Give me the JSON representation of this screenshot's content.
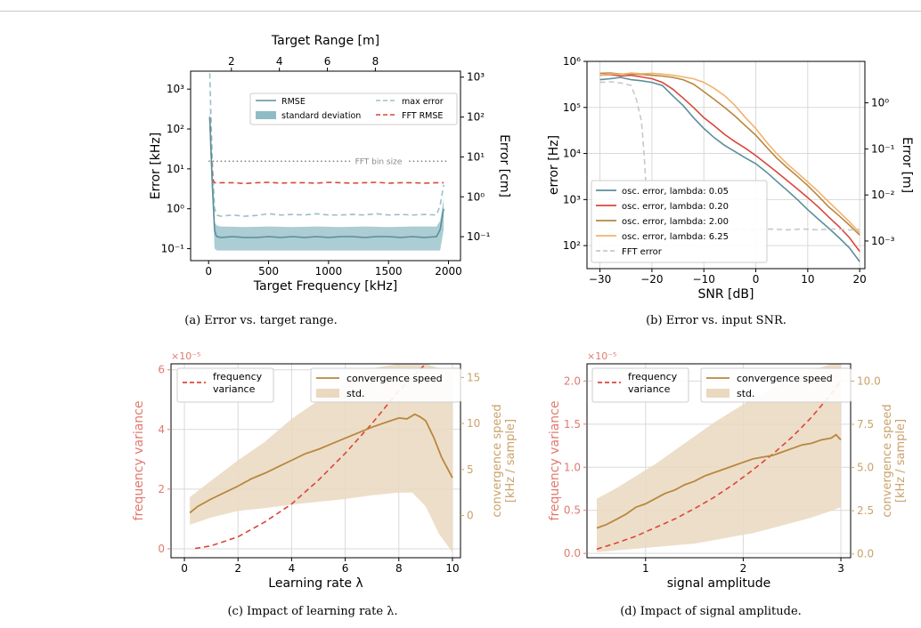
{
  "colors": {
    "teal": "#5a8f9a",
    "teal_band": "#8fbcc4",
    "light_teal": "#9bc0c6",
    "red": "#d9473b",
    "gray": "#c8c8c8",
    "dark_gold": "#b8873f",
    "light_orange": "#f2b26e",
    "tan_band": "#ead8bf",
    "pink": "#e07a70",
    "tan_text": "#c9a26a"
  },
  "captions": {
    "a": "(a) Error vs. target range.",
    "b": "(b) Error vs. input SNR.",
    "c": "(c) Impact of learning rate λ.",
    "d": "(d) Impact of signal amplitude."
  },
  "chart_data": [
    {
      "id": "a",
      "type": "line",
      "xlabel": "Target Frequency [kHz]",
      "ylabel": "Error [kHz]",
      "xlabel_top": "Target Range [m]",
      "ylabel_right": "Error [cm]",
      "xlim": [
        -150,
        2100
      ],
      "ylim_log10": [
        -1.3,
        3.45
      ],
      "yscale": "log",
      "xticks": [
        0,
        500,
        1000,
        1500,
        2000
      ],
      "xticks_top": [
        "2",
        "4",
        "6",
        "8"
      ],
      "xticks_top_at": [
        190,
        590,
        990,
        1390
      ],
      "yticks_log10": [
        -1,
        0,
        1,
        2,
        3
      ],
      "yticks_right_log10": [
        -1,
        0,
        1,
        2,
        3
      ],
      "yticks_right_offset_log10": -0.3,
      "grid": false,
      "annotation": "FFT bin size",
      "annotation_y": 15.6,
      "legend_position": "top",
      "legend": [
        "RMSE",
        "standard deviation",
        "max error",
        "FFT RMSE"
      ],
      "series": [
        {
          "name": "RMSE",
          "x": [
            10,
            20,
            30,
            40,
            50,
            60,
            70,
            100,
            200,
            300,
            400,
            500,
            600,
            700,
            800,
            900,
            1000,
            1100,
            1200,
            1300,
            1400,
            1500,
            1600,
            1700,
            1800,
            1900,
            1930,
            1960
          ],
          "y": [
            200,
            30,
            5,
            1.2,
            0.3,
            0.22,
            0.2,
            0.19,
            0.2,
            0.19,
            0.19,
            0.2,
            0.19,
            0.2,
            0.19,
            0.2,
            0.19,
            0.2,
            0.2,
            0.19,
            0.2,
            0.2,
            0.19,
            0.2,
            0.19,
            0.2,
            0.3,
            1.0
          ]
        },
        {
          "name": "standard deviation",
          "x": [
            10,
            20,
            30,
            40,
            50,
            70,
            100,
            300,
            500,
            700,
            900,
            1100,
            1300,
            1500,
            1700,
            1900,
            1930,
            1960
          ],
          "lower": [
            100,
            10,
            2,
            0.5,
            0.1,
            0.09,
            0.09,
            0.09,
            0.09,
            0.09,
            0.09,
            0.09,
            0.09,
            0.09,
            0.09,
            0.09,
            0.09,
            0.3
          ],
          "upper": [
            400,
            80,
            12,
            3,
            0.45,
            0.38,
            0.36,
            0.35,
            0.36,
            0.35,
            0.36,
            0.35,
            0.36,
            0.35,
            0.36,
            0.36,
            0.5,
            1.8
          ]
        },
        {
          "name": "max error",
          "x": [
            10,
            20,
            30,
            40,
            50,
            70,
            100,
            200,
            300,
            400,
            500,
            600,
            700,
            800,
            900,
            1000,
            1100,
            1200,
            1300,
            1400,
            1500,
            1600,
            1700,
            1800,
            1900,
            1930,
            1960
          ],
          "y": [
            2500,
            200,
            20,
            4,
            1,
            0.7,
            0.65,
            0.7,
            0.65,
            0.68,
            0.75,
            0.7,
            0.72,
            0.7,
            0.75,
            0.7,
            0.7,
            0.72,
            0.7,
            0.75,
            0.7,
            0.72,
            0.7,
            0.72,
            0.7,
            1.2,
            4
          ]
        },
        {
          "name": "FFT RMSE",
          "x": [
            10,
            20,
            30,
            40,
            50,
            100,
            200,
            300,
            400,
            500,
            600,
            700,
            800,
            900,
            1000,
            1100,
            1200,
            1300,
            1400,
            1500,
            1600,
            1700,
            1800,
            1900,
            1960
          ],
          "y": [
            200,
            30,
            8,
            5,
            4.5,
            4.5,
            4.5,
            4.3,
            4.5,
            4.6,
            4.4,
            4.5,
            4.5,
            4.4,
            4.6,
            4.5,
            4.4,
            4.5,
            4.6,
            4.4,
            4.5,
            4.5,
            4.4,
            4.5,
            4.5
          ]
        }
      ]
    },
    {
      "id": "b",
      "type": "line",
      "xlabel": "SNR [dB]",
      "ylabel": "error [Hz]",
      "ylabel_right": "Error [m]",
      "xlim": [
        -32.5,
        21
      ],
      "ylim_log10": [
        1.5,
        6
      ],
      "yscale": "log",
      "xticks": [
        -30,
        -20,
        -10,
        0,
        10,
        20
      ],
      "yticks_log10": [
        2,
        3,
        4,
        5,
        6
      ],
      "yticks_right_log10": [
        -3,
        -2,
        -1,
        0
      ],
      "yticks_right_offset_log10": 5.1,
      "grid": true,
      "legend_position": "bottom-left",
      "series": [
        {
          "name": "osc. error, lambda: 0.05",
          "x": [
            -30,
            -28,
            -26,
            -24,
            -22,
            -20,
            -18,
            -16,
            -14,
            -12,
            -10,
            -8,
            -6,
            -4,
            -2,
            0,
            2,
            4,
            6,
            8,
            10,
            12,
            14,
            16,
            18,
            20
          ],
          "y": [
            400000,
            420000,
            450000,
            400000,
            380000,
            350000,
            300000,
            180000,
            110000,
            60000,
            35000,
            22000,
            15000,
            11000,
            8000,
            6000,
            4000,
            2500,
            1600,
            1000,
            600,
            380,
            240,
            150,
            90,
            45
          ]
        },
        {
          "name": "osc. error, lambda: 0.20",
          "x": [
            -30,
            -28,
            -26,
            -24,
            -22,
            -20,
            -18,
            -16,
            -14,
            -12,
            -10,
            -8,
            -6,
            -4,
            -2,
            0,
            2,
            4,
            6,
            8,
            10,
            12,
            14,
            16,
            18,
            20
          ],
          "y": [
            500000,
            520000,
            480000,
            500000,
            460000,
            420000,
            350000,
            250000,
            160000,
            100000,
            60000,
            40000,
            26000,
            18000,
            13000,
            9000,
            6000,
            4000,
            2600,
            1700,
            1100,
            700,
            420,
            260,
            150,
            75
          ]
        },
        {
          "name": "osc. error, lambda: 2.00",
          "x": [
            -30,
            -28,
            -26,
            -24,
            -22,
            -20,
            -18,
            -16,
            -14,
            -12,
            -10,
            -8,
            -6,
            -4,
            -2,
            0,
            2,
            4,
            6,
            8,
            10,
            12,
            14,
            16,
            18,
            20
          ],
          "y": [
            550000,
            560000,
            530000,
            540000,
            520000,
            500000,
            480000,
            450000,
            400000,
            320000,
            220000,
            150000,
            100000,
            65000,
            40000,
            25000,
            14000,
            8000,
            5000,
            3200,
            2000,
            1200,
            700,
            450,
            280,
            170
          ]
        },
        {
          "name": "osc. error, lambda: 6.25",
          "x": [
            -30,
            -28,
            -26,
            -24,
            -22,
            -20,
            -18,
            -16,
            -14,
            -12,
            -10,
            -8,
            -6,
            -4,
            -2,
            0,
            2,
            4,
            6,
            8,
            10,
            12,
            14,
            16,
            18,
            20
          ],
          "y": [
            500000,
            540000,
            520000,
            560000,
            540000,
            550000,
            530000,
            500000,
            460000,
            420000,
            350000,
            260000,
            180000,
            110000,
            60000,
            35000,
            18000,
            10000,
            6000,
            3800,
            2400,
            1500,
            900,
            550,
            330,
            190
          ]
        },
        {
          "name": "FFT error",
          "x": [
            -30,
            -28,
            -26,
            -24,
            -23,
            -22,
            -21.5,
            -21,
            -20.5,
            -20,
            -18,
            -15,
            -12,
            -9,
            -6,
            -3,
            0,
            3,
            6,
            9,
            12,
            15,
            18,
            20
          ],
          "y": [
            350000,
            360000,
            340000,
            300000,
            150000,
            50000,
            10000,
            1000,
            300,
            230,
            220,
            230,
            220,
            240,
            220,
            230,
            220,
            230,
            220,
            230,
            220,
            230,
            220,
            225
          ]
        }
      ]
    },
    {
      "id": "c",
      "type": "line",
      "xlabel": "Learning rate λ",
      "ylabel": "frequency variance",
      "ylabel_right": "convergence speed\n[kHz / sample]",
      "y_multiplier": "×10⁻⁵",
      "xlim": [
        -0.5,
        10.3
      ],
      "ylim": [
        -0.3,
        6.2
      ],
      "ylim_right": [
        -4.58,
        16.48
      ],
      "xticks": [
        0,
        2,
        4,
        6,
        8,
        10
      ],
      "yticks": [
        0,
        2,
        4,
        6
      ],
      "yticks_right": [
        0,
        5,
        10,
        15
      ],
      "grid": true,
      "legend_left": [
        "frequency\nvariance"
      ],
      "legend_right": [
        "convergence speed",
        "std."
      ],
      "series": [
        {
          "name": "frequency\nvariance",
          "axis": "left",
          "x": [
            0.4,
            1,
            2,
            3,
            4,
            5,
            6,
            7,
            8,
            9,
            9.5,
            10
          ],
          "y": [
            0.01,
            0.1,
            0.4,
            0.9,
            1.5,
            2.3,
            3.2,
            4.2,
            5.3,
            6.2,
            6.6,
            7.0
          ]
        },
        {
          "name": "convergence speed",
          "axis": "right",
          "x": [
            0.2,
            0.5,
            1,
            1.5,
            2,
            2.5,
            3,
            3.5,
            4,
            4.5,
            5,
            5.5,
            6,
            6.5,
            7,
            7.5,
            8,
            8.3,
            8.6,
            8.8,
            9,
            9.3,
            9.6,
            10
          ],
          "y": [
            0.3,
            1,
            1.8,
            2.5,
            3.2,
            4,
            4.6,
            5.3,
            6,
            6.7,
            7.2,
            7.8,
            8.4,
            9,
            9.6,
            10.1,
            10.6,
            10.5,
            11,
            10.7,
            10.3,
            8.5,
            6.3,
            4.1
          ]
        },
        {
          "name": "std.",
          "axis": "right",
          "x": [
            0.2,
            1,
            2,
            3,
            4,
            5,
            6,
            7,
            8,
            8.5,
            9,
            9.5,
            10
          ],
          "lower": [
            -1,
            -0.2,
            0.5,
            0.8,
            1.2,
            1.5,
            1.8,
            2.2,
            2.5,
            2.5,
            1,
            -2,
            -4
          ],
          "upper": [
            2,
            3.8,
            6,
            8,
            10.5,
            12.5,
            14.5,
            16,
            16.5,
            16.5,
            16.5,
            16,
            15.5
          ]
        }
      ]
    },
    {
      "id": "d",
      "type": "line",
      "xlabel": "signal amplitude",
      "ylabel": "frequency variance",
      "ylabel_right": "convergence speed\n[kHz / sample]",
      "y_multiplier": "×10⁻⁵",
      "xlim": [
        0.4,
        3.1
      ],
      "ylim": [
        -0.05,
        2.2
      ],
      "ylim_right": [
        -0.22,
        11.0
      ],
      "xticks": [
        1,
        2,
        3
      ],
      "yticks": [
        0.0,
        0.5,
        1.0,
        1.5,
        2.0
      ],
      "yticks_right": [
        0.0,
        2.5,
        5.0,
        7.5,
        10.0
      ],
      "grid": true,
      "legend_left": [
        "frequency\nvariance"
      ],
      "legend_right": [
        "convergence speed",
        "std."
      ],
      "series": [
        {
          "name": "frequency\nvariance",
          "axis": "left",
          "x": [
            0.5,
            0.7,
            0.9,
            1.1,
            1.3,
            1.5,
            1.7,
            1.9,
            2.1,
            2.3,
            2.5,
            2.7,
            2.9,
            3.0
          ],
          "y": [
            0.05,
            0.12,
            0.2,
            0.3,
            0.4,
            0.52,
            0.65,
            0.8,
            0.97,
            1.15,
            1.35,
            1.58,
            1.85,
            2.0
          ]
        },
        {
          "name": "convergence speed",
          "axis": "right",
          "x": [
            0.5,
            0.6,
            0.7,
            0.8,
            0.9,
            1.0,
            1.1,
            1.2,
            1.3,
            1.4,
            1.5,
            1.6,
            1.7,
            1.8,
            1.9,
            2.0,
            2.1,
            2.2,
            2.3,
            2.4,
            2.5,
            2.6,
            2.7,
            2.8,
            2.9,
            2.95,
            3.0
          ],
          "y": [
            1.5,
            1.7,
            2.0,
            2.3,
            2.7,
            2.9,
            3.2,
            3.5,
            3.7,
            4.0,
            4.2,
            4.5,
            4.7,
            4.9,
            5.1,
            5.3,
            5.5,
            5.6,
            5.7,
            5.9,
            6.1,
            6.3,
            6.4,
            6.6,
            6.7,
            6.9,
            6.6
          ]
        },
        {
          "name": "std.",
          "axis": "right",
          "x": [
            0.5,
            0.7,
            0.9,
            1.1,
            1.3,
            1.5,
            1.7,
            1.9,
            2.1,
            2.3,
            2.5,
            2.7,
            2.9,
            3.0
          ],
          "lower": [
            0.1,
            0.2,
            0.3,
            0.4,
            0.5,
            0.6,
            0.8,
            1.0,
            1.2,
            1.5,
            1.8,
            2.1,
            2.5,
            2.7
          ],
          "upper": [
            3.2,
            3.8,
            4.5,
            5.2,
            6.0,
            6.8,
            7.6,
            8.3,
            9.0,
            9.6,
            10.2,
            10.6,
            11.0,
            11.0
          ]
        }
      ]
    }
  ]
}
